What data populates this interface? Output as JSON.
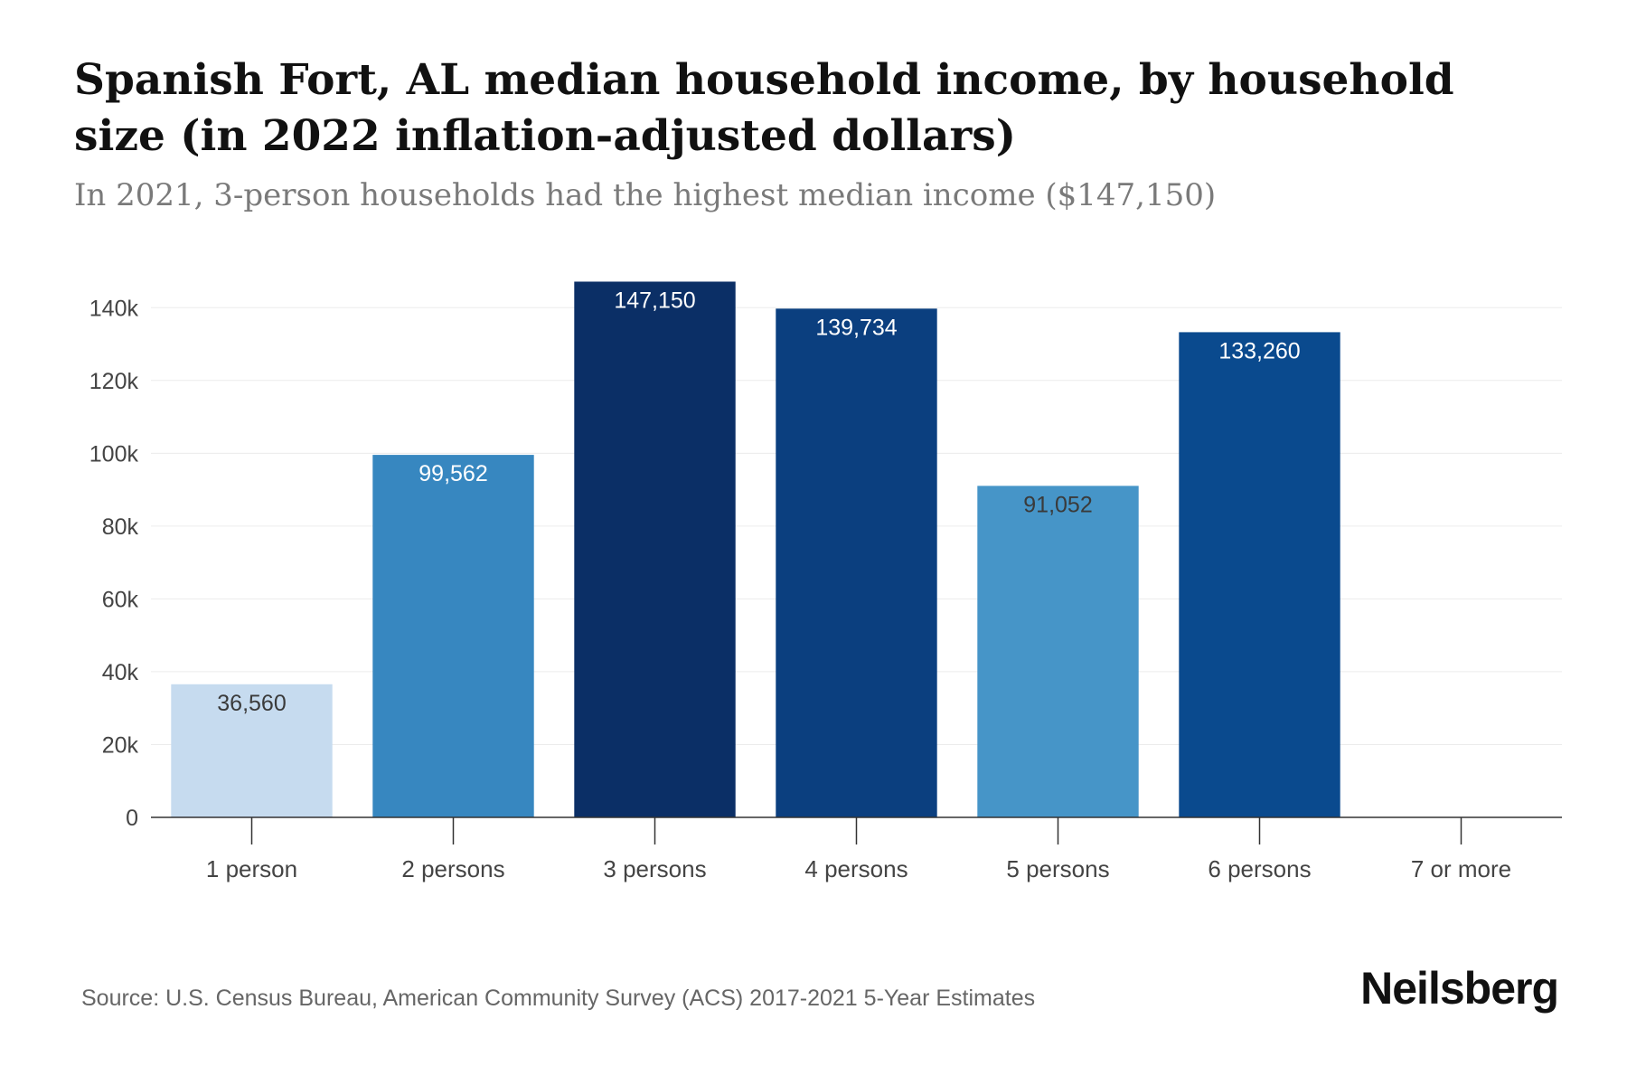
{
  "chart_data": {
    "type": "bar",
    "title": "Spanish Fort, AL median household income, by household size (in 2022 inflation-adjusted dollars)",
    "subtitle": "In 2021, 3-person households had the highest median income ($147,150)",
    "categories": [
      "1 person",
      "2 persons",
      "3 persons",
      "4 persons",
      "5 persons",
      "6 persons",
      "7 or more"
    ],
    "values": [
      36560,
      99562,
      147150,
      139734,
      91052,
      133260,
      null
    ],
    "value_labels": [
      "36,560",
      "99,562",
      "147,150",
      "139,734",
      "91,052",
      "133,260",
      ""
    ],
    "bar_colors": [
      "#c6dbef",
      "#3787c0",
      "#0b2f66",
      "#0b3f7f",
      "#4695c8",
      "#0a4a8e",
      "#ffffff"
    ],
    "label_colors": [
      "#3a3a3a",
      "#ffffff",
      "#ffffff",
      "#ffffff",
      "#3a3a3a",
      "#ffffff",
      "#ffffff"
    ],
    "y_ticks": [
      0,
      20000,
      40000,
      60000,
      80000,
      100000,
      120000,
      140000
    ],
    "y_tick_labels": [
      "0",
      "20k",
      "40k",
      "60k",
      "80k",
      "100k",
      "120k",
      "140k"
    ],
    "ylim": [
      0,
      150000
    ],
    "xlabel": "",
    "ylabel": "",
    "grid": true
  },
  "footer": {
    "source": "Source: U.S. Census Bureau, American Community Survey (ACS) 2017-2021 5-Year Estimates",
    "brand": "Neilsberg"
  },
  "colors": {
    "gridline": "#ececec",
    "axis": "#333333"
  }
}
